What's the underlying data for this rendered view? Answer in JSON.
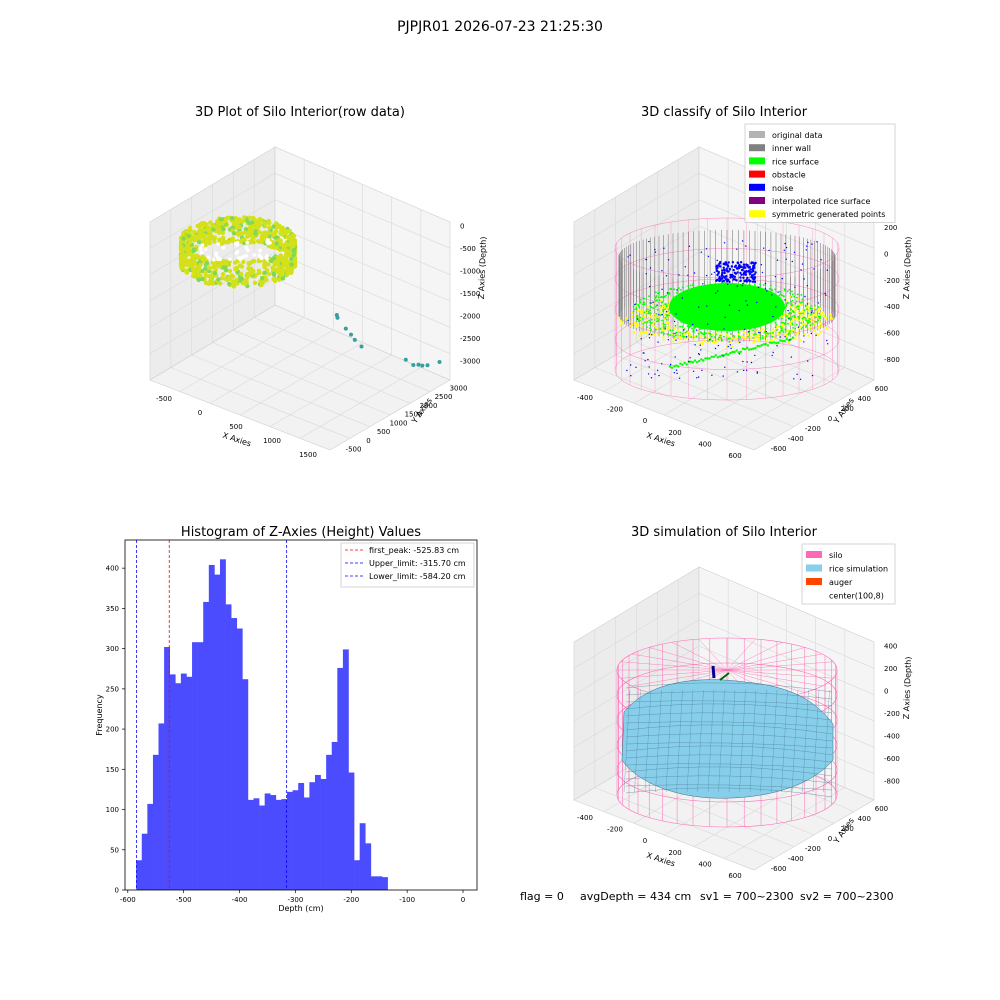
{
  "figure": {
    "suptitle": "PJPJR01 2026-07-23 21:25:30",
    "footer": {
      "flag": "flag = 0",
      "avg_depth": "avgDepth = 434 cm",
      "sv1": "sv1 = 700~2300",
      "sv2": "sv2 = 700~2300"
    }
  },
  "chart_data": [
    {
      "type": "scatter",
      "projection": "3d",
      "title": "3D Plot of Silo Interior(row data)",
      "xlabel": "X Axies",
      "ylabel": "Y Axies",
      "zlabel": "Z Axies (Depth)",
      "x_ticks": [
        "-500",
        "0",
        "500",
        "1000",
        "1500"
      ],
      "y_ticks": [
        "-500",
        "0",
        "500",
        "1000",
        "1500",
        "2000",
        "2500",
        "3000"
      ],
      "z_ticks": [
        "0",
        "-500",
        "-1000",
        "-1500",
        "-2000",
        "-2500",
        "-3000"
      ],
      "xlim": [
        -700,
        1700
      ],
      "ylim": [
        -700,
        3300
      ],
      "zlim": [
        -3200,
        200
      ],
      "colors": {
        "ring": "#d4e01a",
        "ring_alt": "#7ed957",
        "outliers": "#3a9e9e"
      },
      "outlier_points": [
        {
          "x": 1050,
          "y": 1150,
          "z": -1450
        },
        {
          "x": 1150,
          "y": 1200,
          "z": -1700
        },
        {
          "x": 1180,
          "y": 1300,
          "z": -1850
        },
        {
          "x": 1250,
          "y": 1250,
          "z": -1900
        },
        {
          "x": 1300,
          "y": 1350,
          "z": -2050
        },
        {
          "x": 1000,
          "y": 1300,
          "z": -1600
        },
        {
          "x": 1350,
          "y": 2700,
          "z": -2850
        },
        {
          "x": 1450,
          "y": 2700,
          "z": -2900
        },
        {
          "x": 1500,
          "y": 2750,
          "z": -2880
        },
        {
          "x": 1550,
          "y": 2750,
          "z": -2870
        },
        {
          "x": 1600,
          "y": 2800,
          "z": -2850
        },
        {
          "x": 1700,
          "y": 2950,
          "z": -2780
        }
      ]
    },
    {
      "type": "scatter",
      "projection": "3d",
      "title": "3D classify of Silo Interior",
      "xlabel": "X Axies",
      "ylabel": "Y Axies",
      "zlabel": "Z Axies (Depth)",
      "x_ticks": [
        "-400",
        "-200",
        "0",
        "200",
        "400",
        "600"
      ],
      "y_ticks": [
        "-600",
        "-400",
        "-200",
        "0",
        "200",
        "400",
        "600"
      ],
      "z_ticks": [
        "200",
        "0",
        "-200",
        "-400",
        "-600",
        "-800"
      ],
      "legend_position": "upper right",
      "legend": [
        {
          "label": "original data",
          "color": "#b3b3b3"
        },
        {
          "label": "inner wall",
          "color": "#808080"
        },
        {
          "label": "rice surface",
          "color": "#00ff00"
        },
        {
          "label": "obstacle",
          "color": "#ff0000"
        },
        {
          "label": "noise",
          "color": "#0000ff"
        },
        {
          "label": "interpolated rice surface",
          "color": "#800080"
        },
        {
          "label": "symmetric generated points",
          "color": "#ffff00"
        }
      ],
      "silo_color": "#ff69b4"
    },
    {
      "type": "bar",
      "title": "Histogram of Z-Axies (Height) Values",
      "xlabel": "Depth (cm)",
      "ylabel": "Frequency",
      "bar_color": "#4c4cff",
      "bin_edges_start": -585,
      "bin_width": 10,
      "values": [
        37,
        70,
        107,
        168,
        207,
        302,
        268,
        257,
        269,
        265,
        308,
        308,
        358,
        404,
        392,
        411,
        355,
        338,
        325,
        262,
        112,
        114,
        105,
        120,
        118,
        112,
        113,
        122,
        124,
        133,
        115,
        134,
        143,
        138,
        168,
        184,
        276,
        299,
        146,
        37,
        83,
        58,
        17,
        17,
        16
      ],
      "xlim": [
        -605,
        25
      ],
      "ylim": [
        0,
        435
      ],
      "x_ticks": [
        -600,
        -500,
        -400,
        -300,
        -200,
        -100,
        0
      ],
      "y_ticks": [
        0,
        50,
        100,
        150,
        200,
        250,
        300,
        350,
        400
      ],
      "lines": [
        {
          "label": "first_peak: -525.83 cm",
          "x": -525.83,
          "color": "#ff0000"
        },
        {
          "label": "Upper_limit: -315.70 cm",
          "x": -315.7,
          "color": "#0000ff"
        },
        {
          "label": "Lower_limit: -584.20 cm",
          "x": -584.2,
          "color": "#0000ff"
        }
      ],
      "legend_position": "upper right"
    },
    {
      "type": "surface",
      "projection": "3d",
      "title": "3D simulation of Silo Interior",
      "xlabel": "X Axies",
      "ylabel": "Y Axies",
      "zlabel": "Z Axies (Depth)",
      "x_ticks": [
        "-400",
        "-200",
        "0",
        "200",
        "400",
        "600"
      ],
      "y_ticks": [
        "-600",
        "-400",
        "-200",
        "0",
        "200",
        "400",
        "600"
      ],
      "z_ticks": [
        "400",
        "200",
        "0",
        "-200",
        "-400",
        "-600",
        "-800"
      ],
      "legend_position": "upper right",
      "legend": [
        {
          "label": "silo",
          "color": "#ff69b4"
        },
        {
          "label": "rice simulation",
          "color": "#87ceeb"
        },
        {
          "label": "auger",
          "color": "#ff4500"
        },
        {
          "label": "center(100,8)",
          "color": "#ffffff"
        }
      ]
    }
  ]
}
